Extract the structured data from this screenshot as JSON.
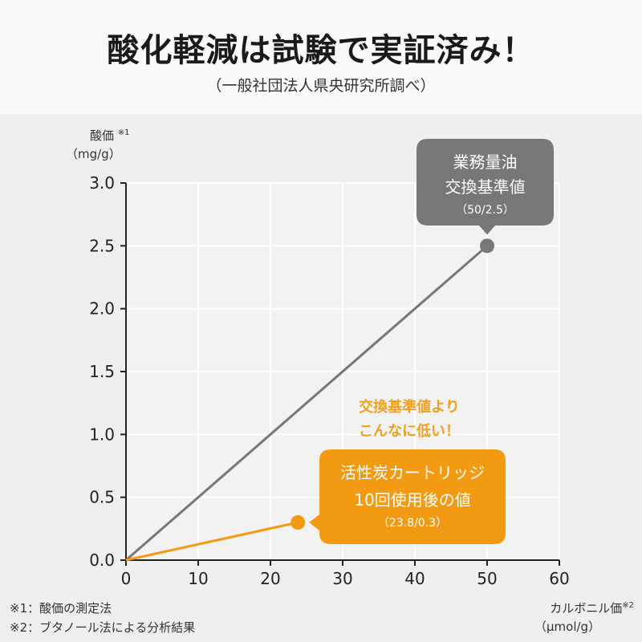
{
  "header": {
    "title": "酸化軽減は試験で実証済み！",
    "subtitle": "（一般社団法人県央研究所調べ）"
  },
  "axes": {
    "y_label": "酸価",
    "y_label_mark": "※1",
    "y_unit": "（mg/g）",
    "x_label": "カルボニル価",
    "x_label_mark": "※2",
    "x_unit": "（μmol/g）"
  },
  "callouts": {
    "gray": {
      "line1": "業務量油",
      "line2": "交換基準値",
      "line3": "（50/2.5）"
    },
    "orange": {
      "line1": "活性炭カートリッジ",
      "line2": "10回使用後の値",
      "line3": "（23.8/0.3）"
    },
    "annotation": {
      "line1": "交換基準値より",
      "line2": "こんなに低い！"
    }
  },
  "footnotes": {
    "note1": "※1：酸価の測定法",
    "note2": "※2：ブタノール法による分析結果"
  },
  "colors": {
    "gray_series": "#777777",
    "orange_series": "#f29a12",
    "annotation_text": "#f0a020"
  },
  "chart_data": {
    "type": "line",
    "xlim": [
      0,
      60
    ],
    "ylim": [
      0,
      3.0
    ],
    "x_ticks": [
      "0",
      "10",
      "20",
      "30",
      "40",
      "50",
      "60"
    ],
    "y_ticks": [
      "0.0",
      "0.5",
      "1.0",
      "1.5",
      "2.0",
      "2.5",
      "3.0"
    ],
    "grid": true,
    "series": [
      {
        "color": "#777777",
        "points": [
          [
            0,
            0
          ],
          [
            50,
            2.5
          ]
        ]
      },
      {
        "color": "#f29a12",
        "points": [
          [
            0,
            0
          ],
          [
            23.8,
            0.3
          ]
        ]
      }
    ]
  }
}
